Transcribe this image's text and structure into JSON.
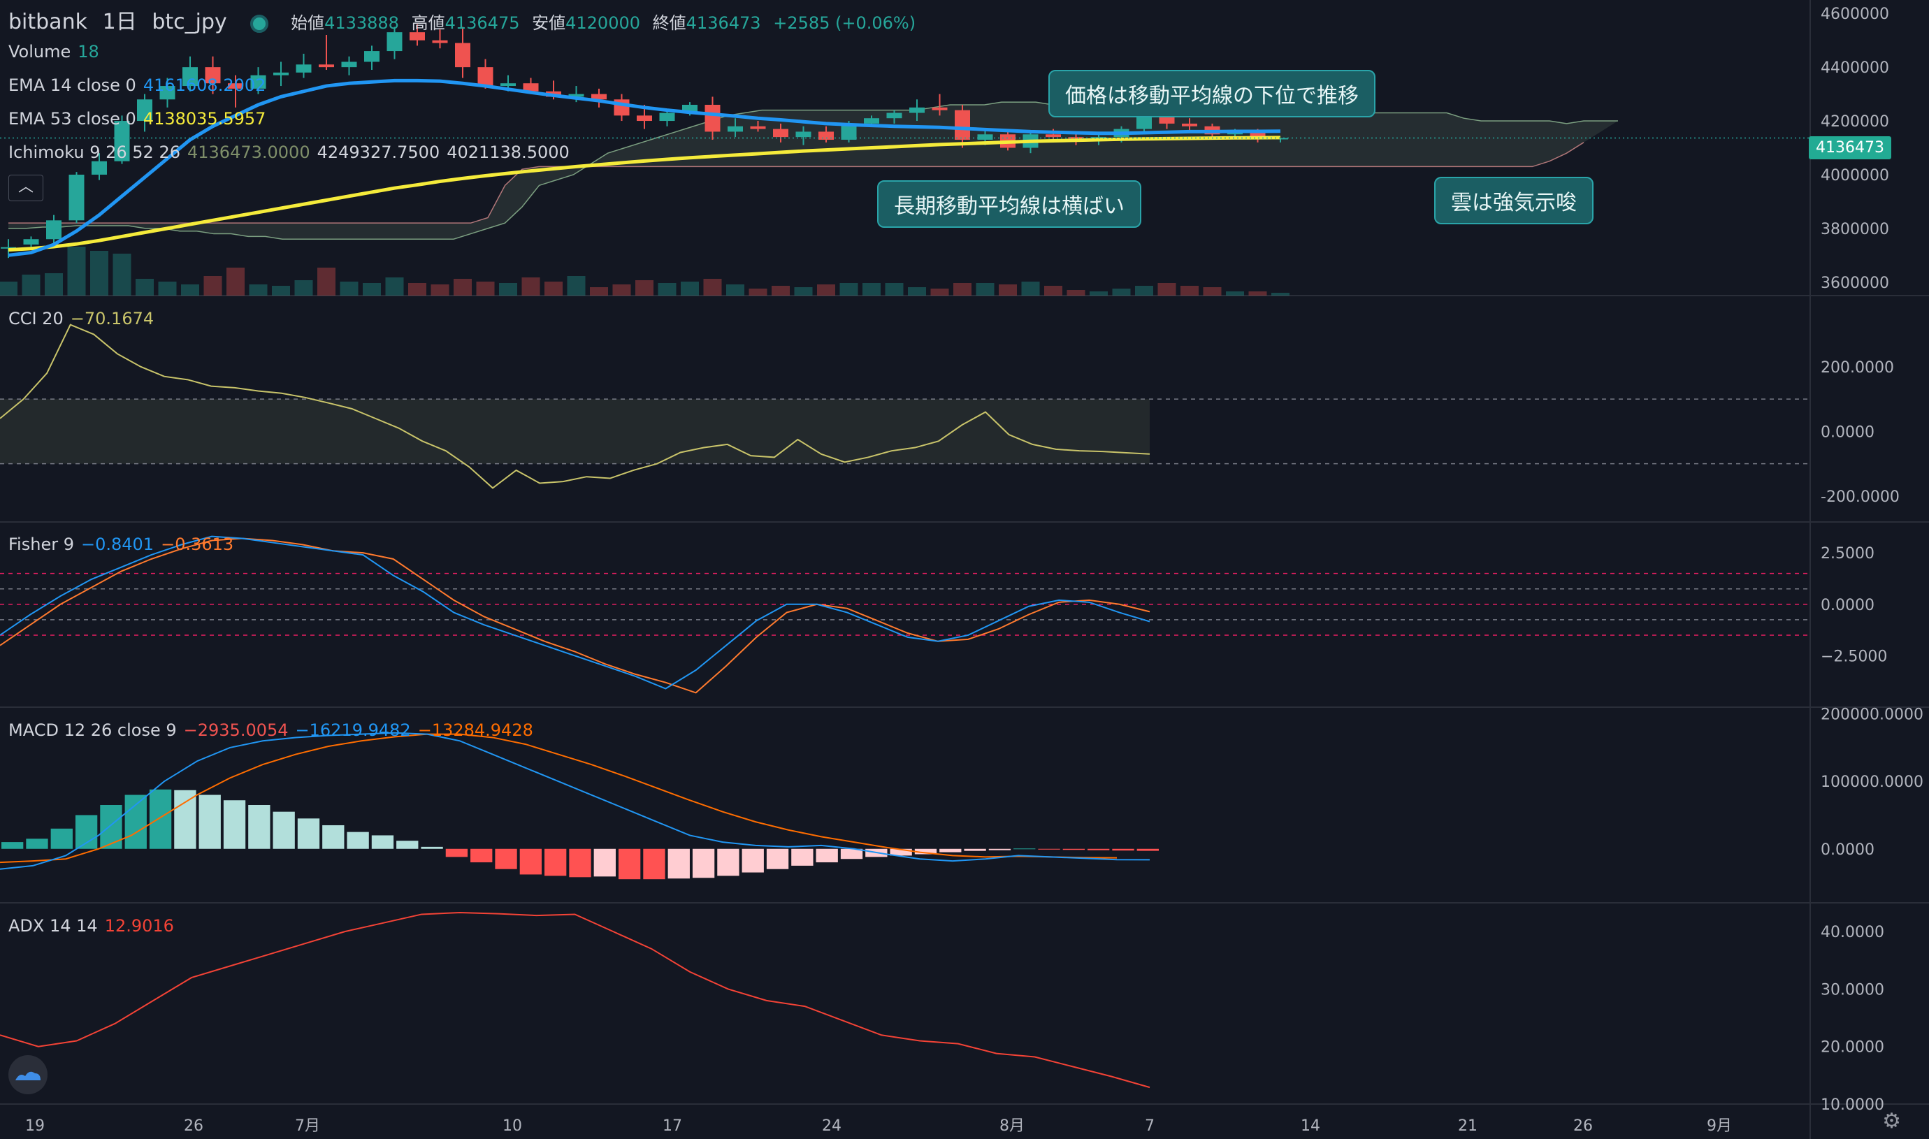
{
  "header": {
    "exchange": "bitbank",
    "interval": "1日",
    "symbol": "btc_jpy",
    "open_label": "始値",
    "open": "4133888",
    "high_label": "高値",
    "high": "4136475",
    "low_label": "安値",
    "low": "4120000",
    "close_label": "終値",
    "close": "4136473",
    "change": "+2585 (+0.06%)"
  },
  "legend": {
    "volume_label": "Volume",
    "volume_value": "18",
    "ema14_label": "EMA 14 close 0",
    "ema14_value": "4161608.2002",
    "ema53_label": "EMA 53 close 0",
    "ema53_value": "4138035.5957",
    "ichimoku_label": "Ichimoku 9 26 52 26",
    "ichimoku_v1": "4136473.0000",
    "ichimoku_v2": "4249327.7500",
    "ichimoku_v3": "4021138.5000"
  },
  "panes": {
    "cci": {
      "label": "CCI 20",
      "value": "−70.1674"
    },
    "fisher": {
      "label": "Fisher 9",
      "v1": "−0.8401",
      "v2": "−0.3613"
    },
    "macd": {
      "label": "MACD 12 26 close 9",
      "v1": "−2935.0054",
      "v2": "−16219.9482",
      "v3": "−13284.9428"
    },
    "adx": {
      "label": "ADX 14 14",
      "value": "12.9016"
    }
  },
  "annotations": {
    "price_below_ma": "価格は移動平均線の下位で推移",
    "long_ma_flat": "長期移動平均線は横ばい",
    "cloud_bullish": "雲は強気示唆"
  },
  "price_tag": "4136473",
  "collapse_icon": "chevron-up-icon",
  "colors": {
    "up": "#26a69a",
    "down": "#ef5350",
    "ema14": "#2196f3",
    "ema53": "#f5eb3b",
    "cci": "#c9c46a",
    "fisher": "#2196f3",
    "trigger": "#ff7a2e",
    "adx": "#f44336",
    "macd_line": "#2196f3",
    "signal": "#ff6d00"
  },
  "chart_data": [
    {
      "type": "candlestick",
      "title": "bitbank 1日 btc_jpy",
      "ylim": [
        3550000,
        4650000
      ],
      "yticks": [
        3600000,
        3800000,
        4000000,
        4200000,
        4400000,
        4600000
      ],
      "x_ticks": [
        "19",
        "26",
        "7月",
        "10",
        "17",
        "24",
        "8月",
        "7",
        "14",
        "21",
        "26",
        "9月"
      ],
      "candles": [
        [
          3728000,
          3760000,
          3690000,
          3730000
        ],
        [
          3740000,
          3770000,
          3720000,
          3760000
        ],
        [
          3760000,
          3850000,
          3730000,
          3830000
        ],
        [
          3830000,
          4010000,
          3820000,
          4000000
        ],
        [
          4000000,
          4080000,
          3980000,
          4050000
        ],
        [
          4050000,
          4220000,
          4040000,
          4200000
        ],
        [
          4200000,
          4300000,
          4160000,
          4280000
        ],
        [
          4280000,
          4360000,
          4250000,
          4330000
        ],
        [
          4330000,
          4440000,
          4310000,
          4400000
        ],
        [
          4400000,
          4440000,
          4300000,
          4340000
        ],
        [
          4340000,
          4370000,
          4250000,
          4320000
        ],
        [
          4320000,
          4400000,
          4300000,
          4370000
        ],
        [
          4370000,
          4420000,
          4330000,
          4380000
        ],
        [
          4380000,
          4450000,
          4360000,
          4410000
        ],
        [
          4410000,
          4520000,
          4390000,
          4400000
        ],
        [
          4400000,
          4440000,
          4370000,
          4420000
        ],
        [
          4420000,
          4480000,
          4390000,
          4460000
        ],
        [
          4460000,
          4550000,
          4430000,
          4530000
        ],
        [
          4530000,
          4560000,
          4480000,
          4500000
        ],
        [
          4500000,
          4540000,
          4470000,
          4490000
        ],
        [
          4490000,
          4550000,
          4360000,
          4400000
        ],
        [
          4400000,
          4430000,
          4320000,
          4330000
        ],
        [
          4330000,
          4370000,
          4310000,
          4340000
        ],
        [
          4340000,
          4360000,
          4300000,
          4310000
        ],
        [
          4310000,
          4350000,
          4280000,
          4290000
        ],
        [
          4290000,
          4330000,
          4270000,
          4300000
        ],
        [
          4300000,
          4320000,
          4250000,
          4280000
        ],
        [
          4280000,
          4300000,
          4200000,
          4220000
        ],
        [
          4220000,
          4260000,
          4170000,
          4200000
        ],
        [
          4200000,
          4240000,
          4180000,
          4230000
        ],
        [
          4230000,
          4270000,
          4220000,
          4260000
        ],
        [
          4260000,
          4290000,
          4130000,
          4160000
        ],
        [
          4160000,
          4210000,
          4140000,
          4180000
        ],
        [
          4180000,
          4200000,
          4160000,
          4170000
        ],
        [
          4170000,
          4190000,
          4120000,
          4140000
        ],
        [
          4140000,
          4180000,
          4110000,
          4160000
        ],
        [
          4160000,
          4180000,
          4120000,
          4130000
        ],
        [
          4130000,
          4200000,
          4120000,
          4190000
        ],
        [
          4190000,
          4220000,
          4180000,
          4210000
        ],
        [
          4210000,
          4240000,
          4190000,
          4230000
        ],
        [
          4230000,
          4280000,
          4200000,
          4250000
        ],
        [
          4250000,
          4300000,
          4220000,
          4240000
        ],
        [
          4240000,
          4260000,
          4100000,
          4130000
        ],
        [
          4130000,
          4170000,
          4110000,
          4150000
        ],
        [
          4150000,
          4160000,
          4090000,
          4100000
        ],
        [
          4100000,
          4160000,
          4080000,
          4150000
        ],
        [
          4150000,
          4170000,
          4120000,
          4140000
        ],
        [
          4140000,
          4160000,
          4110000,
          4130000
        ],
        [
          4130000,
          4150000,
          4110000,
          4140000
        ],
        [
          4140000,
          4180000,
          4120000,
          4170000
        ],
        [
          4170000,
          4230000,
          4160000,
          4220000
        ],
        [
          4220000,
          4300000,
          4170000,
          4190000
        ],
        [
          4190000,
          4210000,
          4160000,
          4180000
        ],
        [
          4180000,
          4190000,
          4140000,
          4150000
        ],
        [
          4150000,
          4170000,
          4140000,
          4160000
        ],
        [
          4160000,
          4170000,
          4120000,
          4140000
        ],
        [
          4133888,
          4136475,
          4120000,
          4136473
        ]
      ],
      "volumes": [
        1.0,
        1.5,
        1.6,
        3.5,
        3.2,
        3.0,
        1.2,
        1.0,
        0.8,
        1.4,
        2.0,
        0.8,
        0.7,
        1.1,
        2.0,
        1.0,
        0.9,
        1.3,
        0.9,
        0.8,
        1.2,
        1.0,
        0.9,
        1.3,
        1.0,
        1.4,
        0.6,
        0.8,
        1.1,
        0.9,
        1.0,
        1.2,
        0.8,
        0.5,
        0.7,
        0.6,
        0.8,
        0.9,
        0.9,
        0.9,
        0.6,
        0.5,
        0.9,
        0.9,
        0.8,
        1.0,
        0.7,
        0.4,
        0.3,
        0.5,
        0.7,
        0.9,
        0.7,
        0.6,
        0.3,
        0.3,
        0.2
      ],
      "ema14": [
        3700000,
        3710000,
        3740000,
        3790000,
        3850000,
        3920000,
        3990000,
        4060000,
        4130000,
        4180000,
        4220000,
        4260000,
        4290000,
        4310000,
        4330000,
        4340000,
        4345000,
        4350000,
        4350000,
        4348000,
        4340000,
        4330000,
        4318000,
        4306000,
        4295000,
        4285000,
        4275000,
        4262000,
        4250000,
        4240000,
        4232000,
        4225000,
        4218000,
        4210000,
        4204000,
        4197000,
        4190000,
        4186000,
        4183000,
        4180000,
        4178000,
        4176000,
        4172000,
        4168000,
        4164000,
        4160000,
        4158000,
        4156000,
        4154000,
        4154000,
        4156000,
        4158000,
        4160000,
        4160000,
        4161000,
        4161000,
        4161608
      ],
      "ema53": [
        3720000,
        3725000,
        3732000,
        3742000,
        3755000,
        3770000,
        3785000,
        3800000,
        3815000,
        3830000,
        3845000,
        3860000,
        3875000,
        3890000,
        3905000,
        3920000,
        3935000,
        3950000,
        3962000,
        3975000,
        3986000,
        3996000,
        4005000,
        4014000,
        4022000,
        4030000,
        4037000,
        4044000,
        4051000,
        4057000,
        4063000,
        4068000,
        4073000,
        4078000,
        4083000,
        4088000,
        4092000,
        4096000,
        4100000,
        4104000,
        4108000,
        4112000,
        4115000,
        4118000,
        4121000,
        4124000,
        4126000,
        4128000,
        4130000,
        4132000,
        4133000,
        4134000,
        4135000,
        4136000,
        4137000,
        4137500,
        4138036
      ],
      "ichimoku": {
        "span_a": [
          3800000,
          3800000,
          3805000,
          3805000,
          3810000,
          3810000,
          3810000,
          3810000,
          3800000,
          3800000,
          3790000,
          3790000,
          3780000,
          3780000,
          3770000,
          3770000,
          3760000,
          3760000,
          3760000,
          3760000,
          3760000,
          3760000,
          3760000,
          3760000,
          3760000,
          3760000,
          3760000,
          3780000,
          3800000,
          3820000,
          3880000,
          3960000,
          3980000,
          4000000,
          4040000,
          4080000,
          4100000,
          4120000,
          4140000,
          4160000,
          4180000,
          4200000,
          4220000,
          4230000,
          4240000,
          4240000,
          4240000,
          4240000,
          4240000,
          4240000,
          4240000,
          4240000,
          4240000,
          4240000,
          4250000,
          4260000,
          4260000,
          4260000,
          4270000,
          4270000,
          4270000,
          4260000,
          4250000,
          4250000,
          4260000,
          4280000,
          4300000,
          4290000,
          4280000,
          4280000,
          4270000,
          4260000,
          4250000,
          4250000,
          4240000,
          4230000,
          4230000,
          4230000,
          4230000,
          4230000,
          4230000,
          4230000,
          4230000,
          4230000,
          4230000,
          4210000,
          4200000,
          4200000,
          4200000,
          4200000,
          4200000,
          4190000,
          4200000,
          4200000,
          4200000
        ],
        "span_b": [
          3820000,
          3820000,
          3820000,
          3820000,
          3820000,
          3820000,
          3820000,
          3820000,
          3820000,
          3820000,
          3820000,
          3820000,
          3820000,
          3820000,
          3820000,
          3820000,
          3820000,
          3820000,
          3820000,
          3820000,
          3820000,
          3820000,
          3820000,
          3820000,
          3820000,
          3820000,
          3820000,
          3820000,
          3840000,
          3960000,
          4020000,
          4030000,
          4030000,
          4030000,
          4030000,
          4030000,
          4030000,
          4030000,
          4030000,
          4030000,
          4030000,
          4030000,
          4030000,
          4030000,
          4030000,
          4030000,
          4030000,
          4030000,
          4030000,
          4030000,
          4030000,
          4030000,
          4030000,
          4030000,
          4030000,
          4030000,
          4030000,
          4030000,
          4030000,
          4030000,
          4030000,
          4030000,
          4030000,
          4030000,
          4030000,
          4030000,
          4030000,
          4030000,
          4030000,
          4030000,
          4030000,
          4030000,
          4030000,
          4030000,
          4030000,
          4030000,
          4030000,
          4030000,
          4030000,
          4030000,
          4030000,
          4030000,
          4030000,
          4030000,
          4030000,
          4030000,
          4030000,
          4030000,
          4030000,
          4030000,
          4050000,
          4080000,
          4120000
        ]
      }
    },
    {
      "type": "line",
      "title": "CCI 20",
      "ylim": [
        -280,
        420
      ],
      "bands": [
        100,
        -100
      ],
      "yticks": [
        200,
        0,
        -200
      ],
      "values": [
        40,
        100,
        180,
        330,
        300,
        240,
        200,
        170,
        160,
        140,
        135,
        125,
        118,
        105,
        88,
        70,
        40,
        10,
        -30,
        -60,
        -110,
        -175,
        -120,
        -160,
        -155,
        -140,
        -145,
        -120,
        -100,
        -65,
        -50,
        -40,
        -75,
        -80,
        -25,
        -70,
        -95,
        -80,
        -60,
        -50,
        -30,
        20,
        60,
        -10,
        -40,
        -55,
        -60,
        -62,
        -66,
        -70
      ]
    },
    {
      "type": "line",
      "title": "Fisher 9",
      "ylim": [
        -5,
        4
      ],
      "yticks": [
        2.5,
        0,
        -2.5
      ],
      "series": [
        {
          "name": "Fisher",
          "values": [
            -1.5,
            -0.5,
            0.4,
            1.2,
            1.8,
            2.4,
            2.9,
            3.3,
            3.2,
            3.0,
            2.8,
            2.6,
            2.4,
            1.4,
            0.6,
            -0.4,
            -1.0,
            -1.5,
            -2.0,
            -2.5,
            -3.0,
            -3.5,
            -4.1,
            -3.2,
            -2.0,
            -0.8,
            0.0,
            0.0,
            -0.4,
            -1.0,
            -1.6,
            -1.8,
            -1.5,
            -0.8,
            -0.1,
            0.2,
            0.1,
            -0.4,
            -0.84
          ]
        },
        {
          "name": "Trigger",
          "values": [
            -2.0,
            -1.0,
            0.0,
            0.8,
            1.6,
            2.2,
            2.7,
            3.1,
            3.2,
            3.1,
            2.9,
            2.6,
            2.5,
            2.2,
            1.2,
            0.2,
            -0.6,
            -1.2,
            -1.8,
            -2.3,
            -2.9,
            -3.4,
            -3.8,
            -4.3,
            -3.0,
            -1.6,
            -0.4,
            0.0,
            -0.2,
            -0.8,
            -1.4,
            -1.8,
            -1.7,
            -1.2,
            -0.5,
            0.1,
            0.2,
            0.0,
            -0.36
          ]
        }
      ]
    },
    {
      "type": "bar",
      "title": "MACD 12 26 close 9",
      "ylim": [
        -80000,
        210000
      ],
      "yticks": [
        200000,
        100000,
        0
      ],
      "histogram": [
        10000,
        15000,
        30000,
        50000,
        65000,
        80000,
        88000,
        87000,
        80000,
        72000,
        65000,
        55000,
        45000,
        35000,
        25000,
        20000,
        12000,
        3000,
        -12000,
        -20000,
        -30000,
        -38000,
        -40000,
        -42000,
        -41000,
        -45000,
        -45000,
        -44000,
        -43000,
        -40000,
        -35000,
        -30000,
        -25000,
        -20000,
        -15000,
        -12000,
        -10000,
        -8000,
        -5000,
        -3000,
        -2000,
        500,
        -1000,
        -1500,
        -2000,
        -2500,
        -2935
      ],
      "series": [
        {
          "name": "MACD",
          "values": [
            -30000,
            -25000,
            -10000,
            20000,
            60000,
            100000,
            130000,
            150000,
            160000,
            165000,
            168000,
            170000,
            172000,
            170000,
            160000,
            140000,
            120000,
            100000,
            80000,
            60000,
            40000,
            20000,
            10000,
            5000,
            3000,
            5000,
            0,
            -8000,
            -15000,
            -18000,
            -15000,
            -10000,
            -12000,
            -14000,
            -16000,
            -16220
          ]
        },
        {
          "name": "Signal",
          "values": [
            -20000,
            -18000,
            -15000,
            0,
            20000,
            50000,
            80000,
            105000,
            125000,
            140000,
            152000,
            160000,
            166000,
            170000,
            170000,
            165000,
            155000,
            140000,
            125000,
            108000,
            90000,
            72000,
            55000,
            40000,
            28000,
            18000,
            10000,
            2000,
            -5000,
            -10000,
            -12000,
            -11000,
            -12000,
            -13000,
            -13280
          ]
        }
      ]
    },
    {
      "type": "line",
      "title": "ADX 14 14",
      "ylim": [
        10,
        45
      ],
      "yticks": [
        40,
        30,
        20,
        10
      ],
      "values": [
        22,
        20,
        21,
        24,
        28,
        32,
        34,
        36,
        38,
        40,
        41.5,
        43,
        43.3,
        43.1,
        42.8,
        43,
        40,
        37,
        33,
        30,
        28,
        27,
        24.5,
        22,
        21,
        20.5,
        18.8,
        18.2,
        16.5,
        14.8,
        12.9
      ]
    }
  ]
}
